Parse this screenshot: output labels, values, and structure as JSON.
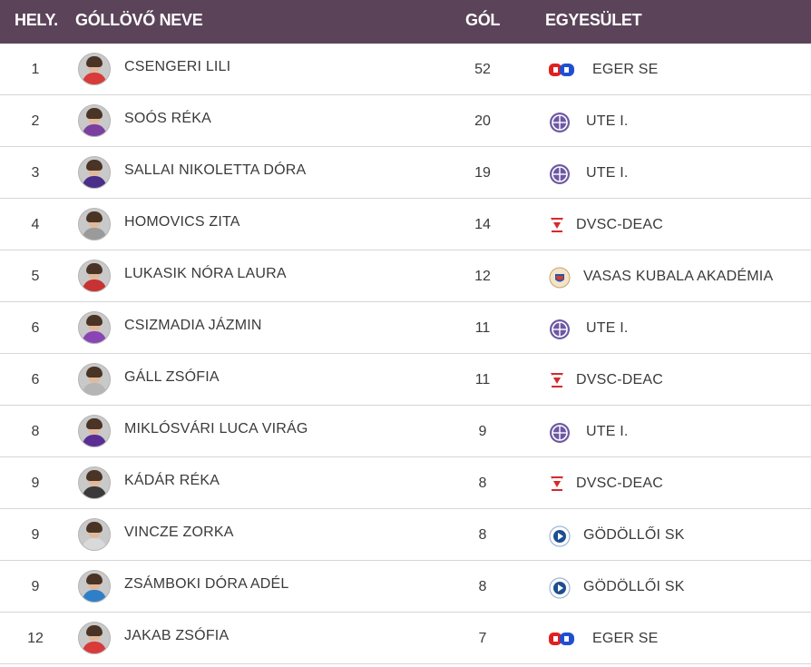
{
  "header": {
    "rank": "HELY.",
    "name": "GÓLLÖVŐ NEVE",
    "goals": "GÓL",
    "club": "EGYESÜLET"
  },
  "rows": [
    {
      "rank": "1",
      "name": "CSENGERI LILI",
      "goals": "52",
      "club": "EGER SE",
      "logo": "eger-se-logo-icon",
      "kit": "#d93a3a"
    },
    {
      "rank": "2",
      "name": "SOÓS RÉKA",
      "goals": "20",
      "club": "UTE I.",
      "logo": "ute-logo-icon",
      "kit": "#7b3fa0"
    },
    {
      "rank": "3",
      "name": "SALLAI NIKOLETTA DÓRA",
      "goals": "19",
      "club": "UTE I.",
      "logo": "ute-logo-icon",
      "kit": "#4b2d8a"
    },
    {
      "rank": "4",
      "name": "HOMOVICS ZITA",
      "goals": "14",
      "club": "DVSC-DEAC",
      "logo": "dvsc-logo-icon",
      "kit": "#9a9a9a"
    },
    {
      "rank": "5",
      "name": "LUKASIK NÓRA LAURA",
      "goals": "12",
      "club": "VASAS KUBALA AKADÉMIA",
      "logo": "vasas-logo-icon",
      "kit": "#c83232"
    },
    {
      "rank": "6",
      "name": "CSIZMADIA JÁZMIN",
      "goals": "11",
      "club": "UTE I.",
      "logo": "ute-logo-icon",
      "kit": "#8a45b5"
    },
    {
      "rank": "6",
      "name": "GÁLL ZSÓFIA",
      "goals": "11",
      "club": "DVSC-DEAC",
      "logo": "dvsc-logo-icon",
      "kit": "#b5b5b5"
    },
    {
      "rank": "8",
      "name": "MIKLÓSVÁRI LUCA VIRÁG",
      "goals": "9",
      "club": "UTE I.",
      "logo": "ute-logo-icon",
      "kit": "#5a2e95"
    },
    {
      "rank": "9",
      "name": "KÁDÁR RÉKA",
      "goals": "8",
      "club": "DVSC-DEAC",
      "logo": "dvsc-logo-icon",
      "kit": "#3a3a3a"
    },
    {
      "rank": "9",
      "name": "VINCZE ZORKA",
      "goals": "8",
      "club": "GÖDÖLLŐI SK",
      "logo": "godolloi-logo-icon",
      "kit": "#d9d9d9"
    },
    {
      "rank": "9",
      "name": "ZSÁMBOKI DÓRA ADÉL",
      "goals": "8",
      "club": "GÖDÖLLŐI SK",
      "logo": "godolloi-logo-icon",
      "kit": "#2f7fc8"
    },
    {
      "rank": "12",
      "name": "JAKAB ZSÓFIA",
      "goals": "7",
      "club": "EGER SE",
      "logo": "eger-se-logo-icon",
      "kit": "#d93a3a"
    }
  ],
  "colors": {
    "header_bg": "#5b4459",
    "header_text": "#ffffff",
    "row_divider": "#d6d6d6",
    "ute_purple": "#6d58a3",
    "eger_red": "#e02020",
    "eger_blue": "#1f4fd0",
    "dvsc_red": "#d62a2a",
    "godolloi_blue": "#1d4f8f"
  }
}
